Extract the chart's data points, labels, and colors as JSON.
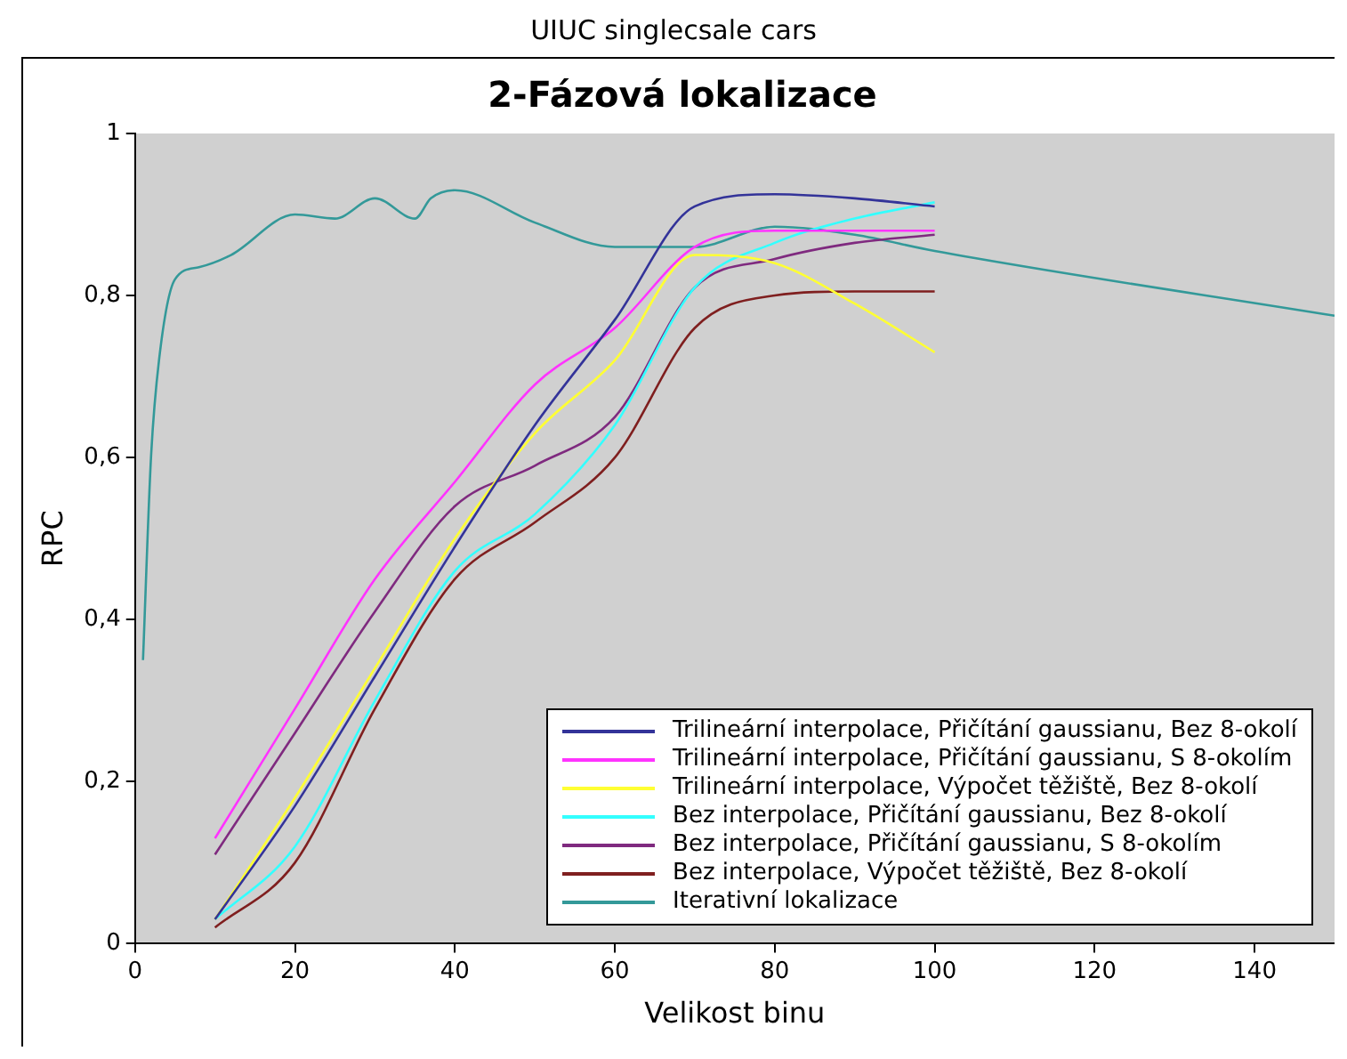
{
  "chart_data": {
    "type": "line",
    "title": "UIUC singlecsale cars",
    "subtitle": "2-Fázová lokalizace",
    "xlabel": "Velikost binu",
    "ylabel": "RPC",
    "xlim": [
      0,
      150
    ],
    "xticks": [
      0,
      20,
      40,
      60,
      80,
      100,
      120,
      140
    ],
    "ylim": [
      0,
      1
    ],
    "yticks": [
      0,
      {
        "value": 0.2,
        "label": "0,2"
      },
      {
        "value": 0.4,
        "label": "0,4"
      },
      {
        "value": 0.6,
        "label": "0,6"
      },
      {
        "value": 0.8,
        "label": "0,8"
      },
      1
    ],
    "grid": false,
    "legend": "bottom right",
    "marker": "none",
    "line_style": "solid",
    "series": [
      {
        "name": "Trilineární interpolace, Přičítání gaussianu, Bez 8-okolí",
        "color": "#333399",
        "x": [
          10,
          20,
          30,
          40,
          50,
          60,
          70,
          80,
          90,
          100
        ],
        "values": [
          0.03,
          0.17,
          0.33,
          0.49,
          0.64,
          0.77,
          0.91,
          0.925,
          0.92,
          0.91
        ]
      },
      {
        "name": "Trilineární interpolace, Přičítání gaussianu, S 8-okolím",
        "color": "#ff33ff",
        "x": [
          10,
          20,
          30,
          40,
          50,
          60,
          70,
          80,
          90,
          100
        ],
        "values": [
          0.13,
          0.29,
          0.45,
          0.57,
          0.69,
          0.76,
          0.86,
          0.88,
          0.88,
          0.88
        ]
      },
      {
        "name": "Trilineární interpolace, Výpočet těžiště, Bez 8-okolí",
        "color": "#ffff33",
        "x": [
          10,
          20,
          30,
          40,
          50,
          60,
          70,
          80,
          90,
          100
        ],
        "values": [
          0.03,
          0.18,
          0.34,
          0.5,
          0.63,
          0.72,
          0.85,
          0.84,
          0.79,
          0.73
        ]
      },
      {
        "name": "Bez interpolace, Přičítání gaussianu, Bez 8-okolí",
        "color": "#33ffff",
        "x": [
          10,
          20,
          30,
          40,
          50,
          60,
          70,
          80,
          90,
          100
        ],
        "values": [
          0.03,
          0.12,
          0.3,
          0.46,
          0.53,
          0.64,
          0.81,
          0.865,
          0.895,
          0.915
        ]
      },
      {
        "name": "Bez interpolace, Přičítání gaussianu, S 8-okolím",
        "color": "#7f2a7f",
        "x": [
          10,
          20,
          30,
          40,
          50,
          60,
          70,
          80,
          90,
          100
        ],
        "values": [
          0.11,
          0.26,
          0.41,
          0.54,
          0.59,
          0.65,
          0.81,
          0.845,
          0.865,
          0.875
        ]
      },
      {
        "name": "Bez interpolace, Výpočet těžiště, Bez 8-okolí",
        "color": "#7f1f1f",
        "x": [
          10,
          20,
          30,
          40,
          50,
          60,
          70,
          80,
          90,
          100
        ],
        "values": [
          0.02,
          0.1,
          0.29,
          0.45,
          0.52,
          0.6,
          0.76,
          0.8,
          0.805,
          0.805
        ]
      },
      {
        "name": "Iterativní lokalizace",
        "color": "#339999",
        "x": [
          1,
          2,
          3,
          5,
          8,
          12,
          20,
          25,
          30,
          35,
          37,
          40,
          50,
          60,
          70,
          80,
          90,
          100,
          150
        ],
        "values": [
          0.35,
          0.6,
          0.72,
          0.82,
          0.835,
          0.85,
          0.9,
          0.895,
          0.92,
          0.895,
          0.92,
          0.93,
          0.89,
          0.86,
          0.86,
          0.885,
          0.875,
          0.855,
          0.775
        ]
      }
    ]
  }
}
